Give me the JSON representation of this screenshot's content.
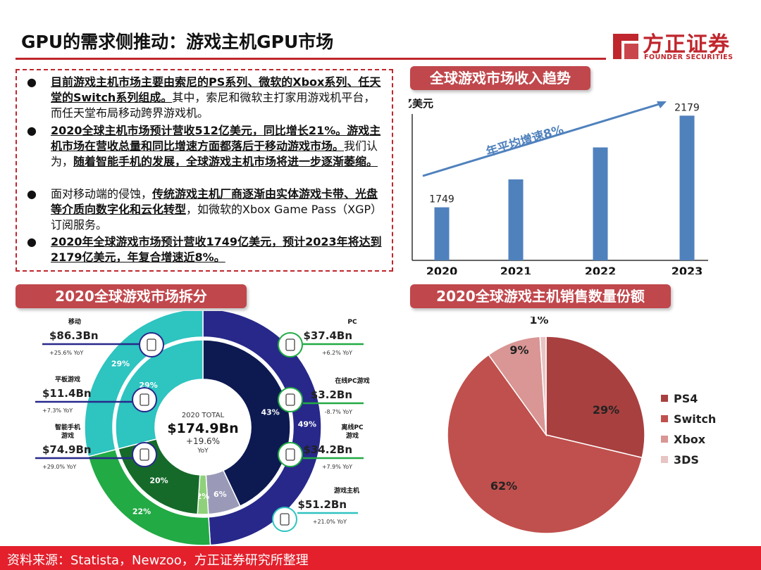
{
  "header": {
    "title": "GPU的需求侧推动：游戏主机GPU市场",
    "logo_name": "方正证券",
    "logo_sub": "FOUNDER SECURITIES"
  },
  "bullets": [
    {
      "segments": [
        {
          "text": "目前游戏主机市场主要由索尼的PS系列、微软的Xbox系列、任天堂的Switch系列组成。",
          "bold": true
        },
        {
          "text": "其中，索尼和微软主打家用游戏机平台，而任天堂布局移动跨界游戏机。",
          "bold": false
        }
      ]
    },
    {
      "segments": [
        {
          "text": "2020全球主机市场预计营收512亿美元，同比增长21%。游戏主机市场在营收总量和同比增速方面都落后于移动游戏市场。",
          "bold": true
        },
        {
          "text": "我们认为，",
          "bold": false
        },
        {
          "text": "随着智能手机的发展，全球游戏主机市场将进一步逐渐萎缩。",
          "bold": true
        }
      ]
    },
    {
      "segments": [
        {
          "text": "面对移动端的侵蚀，",
          "bold": false
        },
        {
          "text": "传统游戏主机厂商逐渐由实体游戏卡带、光盘等介质向数字化和云化转型",
          "bold": true
        },
        {
          "text": "，如微软的Xbox Game Pass（XGP）订阅服务。",
          "bold": false
        }
      ]
    },
    {
      "segments": [
        {
          "text": "2020年全球游戏市场预计营收1749亿美元，预计2023年将达到2179亿美元，年复合增速近8%。",
          "bold": true
        }
      ]
    }
  ],
  "sections": {
    "trend_title": "全球游戏市场收入趋势",
    "breakdown_title": "2020全球游戏市场拆分",
    "share_title": "2020全球游戏主机销售数量份额"
  },
  "chart_data": [
    {
      "type": "bar",
      "title": "全球游戏市场收入趋势",
      "ylabel": "亿美元",
      "categories": [
        "2020",
        "2021",
        "2022",
        "2023"
      ],
      "values": [
        1749,
        1880,
        2030,
        2179
      ],
      "data_labels": [
        "1749",
        "",
        "",
        "2179"
      ],
      "ylim": [
        1500,
        2200
      ],
      "annotation": "年平均增速8%",
      "color": "#4f81bd"
    },
    {
      "type": "pie",
      "title": "2020全球游戏市场拆分",
      "center_lines": [
        "2020 TOTAL",
        "$174.9Bn",
        "+19.6%",
        "YoY"
      ],
      "outer_ring": [
        {
          "name": "移动",
          "value": 49,
          "label": "49%",
          "color": "#27288a"
        },
        {
          "name": "PC",
          "value": 22,
          "label": "22%",
          "color": "#22aa44"
        },
        {
          "name": "游戏主机",
          "value": 29,
          "label": "29%",
          "color": "#2ec4c0"
        }
      ],
      "inner_ring": [
        {
          "name": "智能手机游戏",
          "value": 43,
          "label": "43%",
          "color": "#0d1a52"
        },
        {
          "name": "平板游戏",
          "value": 6,
          "label": "6%",
          "color": "#9a9ab8"
        },
        {
          "name": "在线PC游戏",
          "value": 2,
          "label": "2%",
          "color": "#8fd17a"
        },
        {
          "name": "离线PC游戏",
          "value": 20,
          "label": "20%",
          "color": "#156a2a"
        },
        {
          "name": "游戏主机",
          "value": 29,
          "label": "29%",
          "color": "#2ec4c0"
        }
      ],
      "callouts": [
        {
          "name": "移动",
          "value": "$86.3Bn",
          "yoy": "+25.6% YoY",
          "icon": "tablet-phone-icon"
        },
        {
          "name": "平板游戏",
          "value": "$11.4Bn",
          "yoy": "+7.3% YoY",
          "icon": "tablet-icon"
        },
        {
          "name": "智能手机\n游戏",
          "value": "$74.9Bn",
          "yoy": "+29.0% YoY",
          "icon": "phone-icon"
        },
        {
          "name": "PC",
          "value": "$37.4Bn",
          "yoy": "+6.2% YoY",
          "icon": "monitor-icon"
        },
        {
          "name": "在线PC游戏",
          "value": "$3.2Bn",
          "yoy": "-8.7% YoY",
          "icon": "laptop-icon"
        },
        {
          "name": "离线PC\n游戏",
          "value": "$34.2Bn",
          "yoy": "+7.9% YoY",
          "icon": "desktop-pc-icon"
        },
        {
          "name": "游戏主机",
          "value": "$51.2Bn",
          "yoy": "+21.0% YoY",
          "icon": "gamepad-icon"
        }
      ]
    },
    {
      "type": "pie",
      "title": "2020全球游戏主机销售数量份额",
      "series": [
        {
          "name": "PS4",
          "value": 29,
          "label": "29%",
          "color": "#a8403f"
        },
        {
          "name": "Switch",
          "value": 62,
          "label": "62%",
          "color": "#c0504d"
        },
        {
          "name": "Xbox",
          "value": 9,
          "label": "9%",
          "color": "#d99694"
        },
        {
          "name": "3DS",
          "value": 1,
          "label": "1%",
          "color": "#e8c4c4"
        }
      ],
      "legend": "right"
    }
  ],
  "footer": {
    "source": "资料来源：Statista，Newzoo，方正证券研究所整理"
  }
}
